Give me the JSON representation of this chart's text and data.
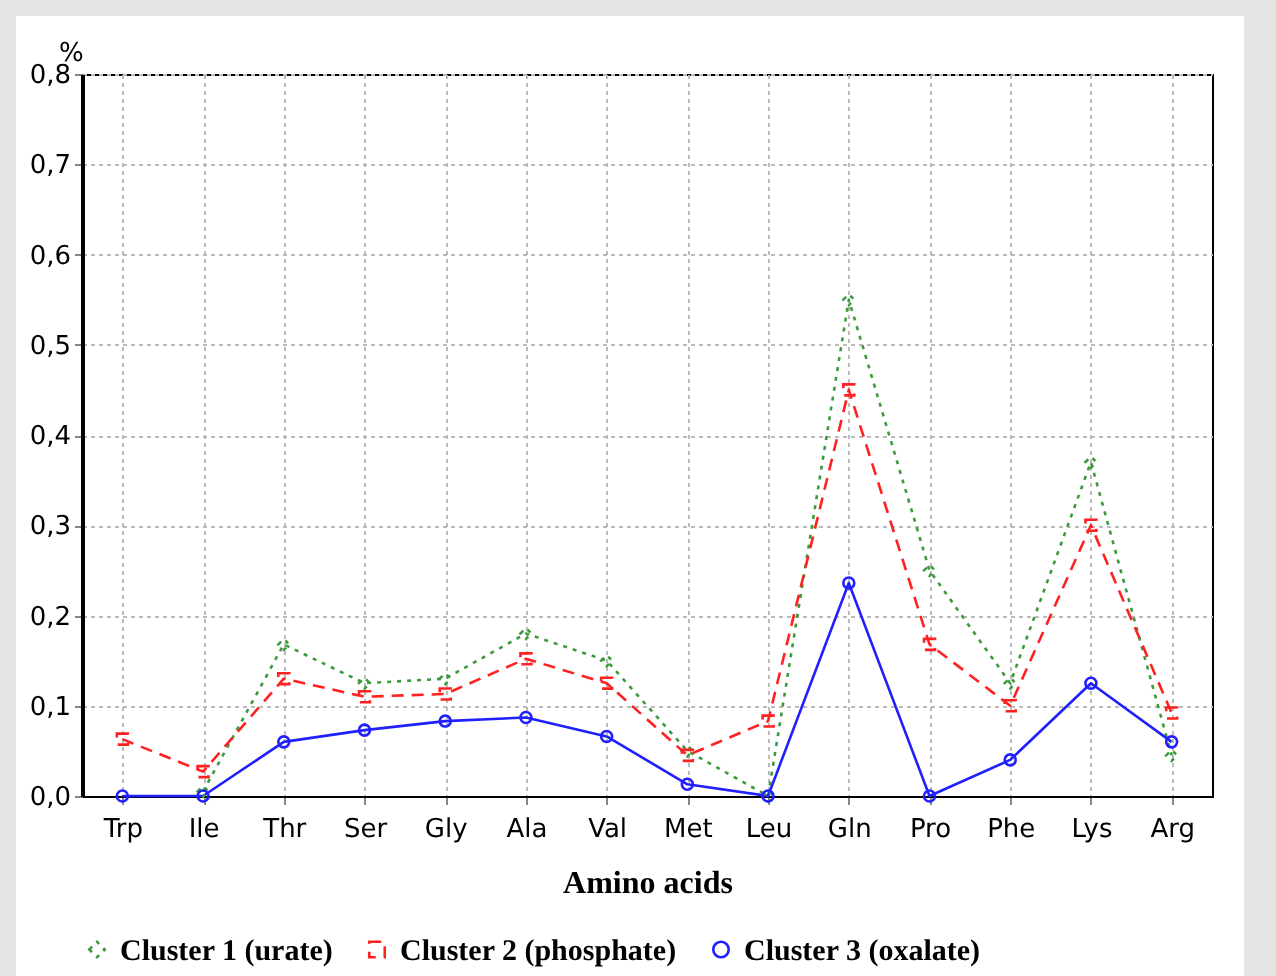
{
  "chart_data": {
    "type": "line",
    "xlabel": "Amino acids",
    "ylabel": "%",
    "categories": [
      "Trp",
      "Ile",
      "Thr",
      "Ser",
      "Gly",
      "Ala",
      "Val",
      "Met",
      "Leu",
      "Gln",
      "Pro",
      "Phe",
      "Lys",
      "Arg"
    ],
    "series": [
      {
        "name": "Cluster 1 (urate)",
        "color": "#3c9a3c",
        "marker": "diamond",
        "line_style": "dotted",
        "values": [
          null,
          0.005,
          0.168,
          0.125,
          0.13,
          0.18,
          0.15,
          0.05,
          0.0,
          0.55,
          0.25,
          0.125,
          0.37,
          0.045
        ]
      },
      {
        "name": "Cluster 2 (phosphate)",
        "color": "#ff2020",
        "marker": "square",
        "line_style": "dashed",
        "values": [
          0.063,
          0.027,
          0.13,
          0.11,
          0.113,
          0.152,
          0.125,
          0.045,
          0.083,
          0.45,
          0.168,
          0.1,
          0.3,
          0.092
        ]
      },
      {
        "name": "Cluster 3 (oxalate)",
        "color": "#2020ff",
        "marker": "circle",
        "line_style": "solid",
        "values": [
          0.0,
          0.0,
          0.06,
          0.073,
          0.083,
          0.087,
          0.066,
          0.013,
          0.0,
          0.236,
          0.0,
          0.04,
          0.125,
          0.06
        ]
      }
    ],
    "ylim": [
      0,
      0.8
    ],
    "yticks": [
      {
        "value": 0,
        "label": "0,0"
      },
      {
        "value": 0.1,
        "label": "0,1"
      },
      {
        "value": 0.2,
        "label": "0,2"
      },
      {
        "value": 0.3,
        "label": "0,3"
      },
      {
        "value": 0.4,
        "label": "0,4"
      },
      {
        "value": 0.5,
        "label": "0,5"
      },
      {
        "value": 0.6,
        "label": "0,6"
      },
      {
        "value": 0.7,
        "label": "0,7"
      },
      {
        "value": 0.8,
        "label": "0,8"
      }
    ],
    "grid": true,
    "legend": "bottom"
  }
}
